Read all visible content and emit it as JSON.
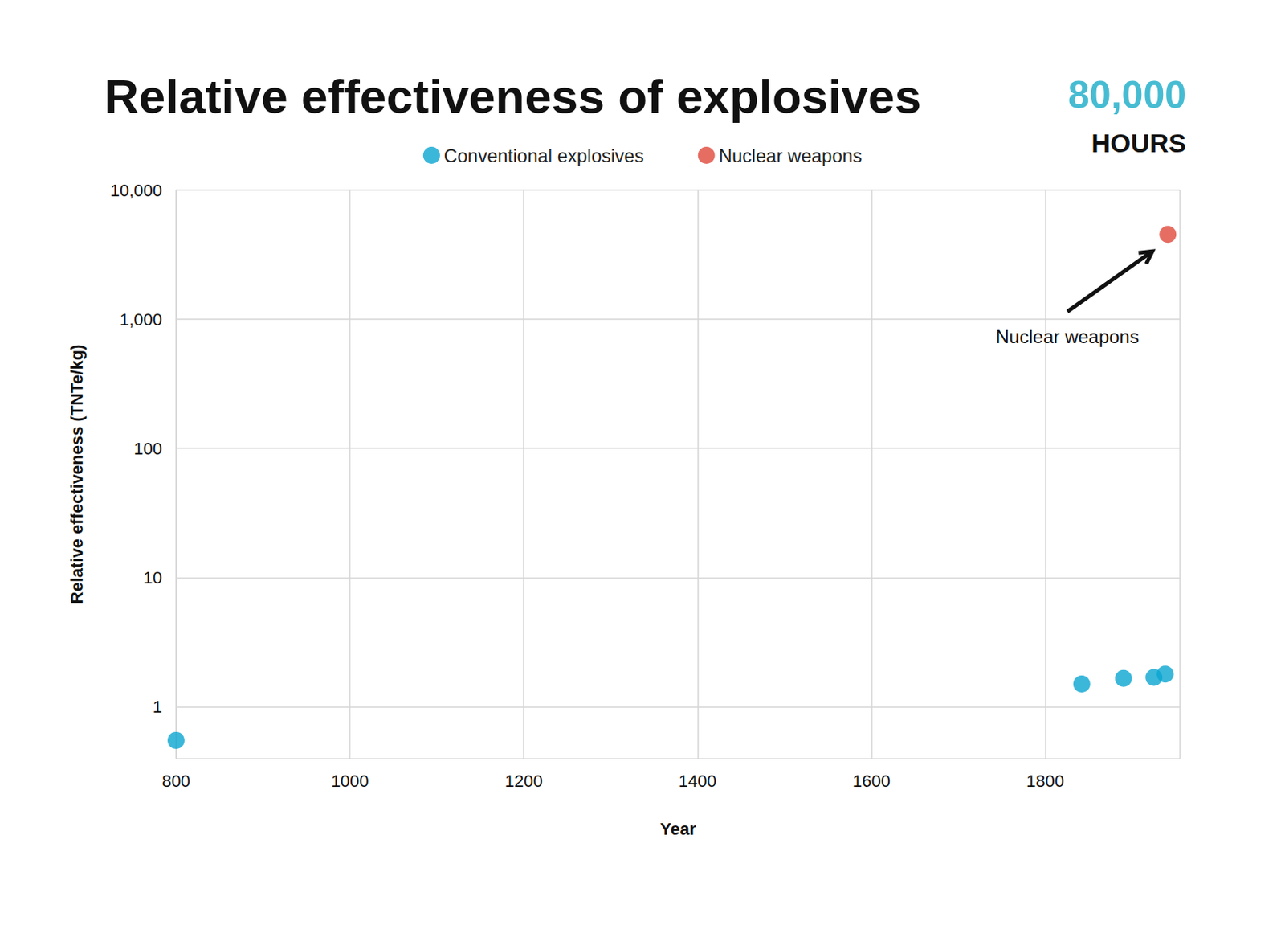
{
  "chart_data": {
    "type": "scatter",
    "title": "Relative effectiveness of explosives",
    "branding": {
      "line1": "80,000",
      "line2": "HOURS"
    },
    "x_label": "Year",
    "y_label": "Relative effectiveness (TNTe/kg)",
    "series": [
      {
        "name": "Conventional explosives",
        "color": "#0aa5d1",
        "x": [
          800,
          1842,
          1890,
          1925,
          1938
        ],
        "values": [
          0.55,
          1.5,
          1.66,
          1.69,
          1.79
        ]
      },
      {
        "name": "Nuclear weapons",
        "color": "#e0493b",
        "x": [
          1941
        ],
        "values": [
          4550
        ]
      }
    ],
    "annotation": "Nuclear weapons",
    "xlim": [
      800,
      1955
    ],
    "xticks": [
      800,
      1000,
      1200,
      1400,
      1600,
      1800
    ],
    "ylim": [
      0.4,
      10000
    ],
    "yticks": [
      1,
      10,
      100,
      {
        "value": 1000,
        "label": "1,000"
      },
      {
        "value": 10000,
        "label": "10,000"
      }
    ],
    "log": "y",
    "grid": true,
    "legend": "top"
  }
}
